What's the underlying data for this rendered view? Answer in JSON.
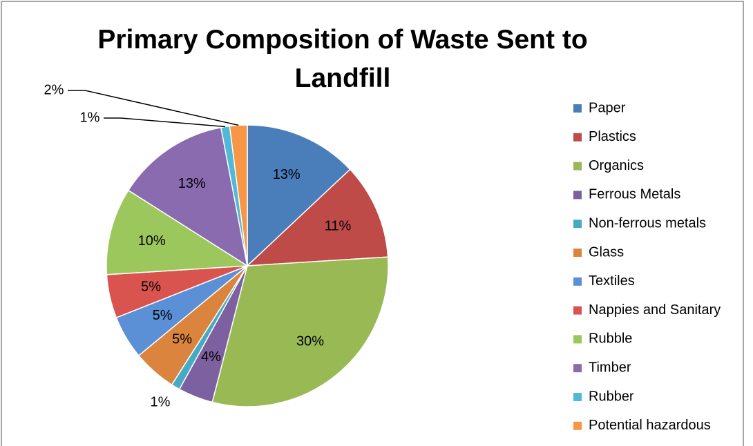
{
  "chart_data": {
    "type": "pie",
    "title": "Primary Composition of Waste Sent to Landfill",
    "categories": [
      "Paper",
      "Plastics",
      "Organics",
      "Ferrous Metals",
      "Non-ferrous metals",
      "Glass",
      "Textiles",
      "Nappies and Sanitary",
      "Rubble",
      "Timber",
      "Rubber",
      "Potential hazardous"
    ],
    "values": [
      13,
      11,
      30,
      4,
      1,
      5,
      5,
      5,
      10,
      13,
      1,
      2
    ],
    "value_labels": [
      "13%",
      "11%",
      "30%",
      "4%",
      "1%",
      "5%",
      "5%",
      "5%",
      "10%",
      "13%",
      "1%",
      "2%"
    ],
    "colors": [
      "#4A7EBB",
      "#BE4B48",
      "#98B954",
      "#7D60A0",
      "#46AAC5",
      "#DB843D",
      "#5B8FD6",
      "#D9534F",
      "#9CC75C",
      "#8A6BB0",
      "#4FB9D6",
      "#F79646"
    ],
    "legend": "right"
  }
}
